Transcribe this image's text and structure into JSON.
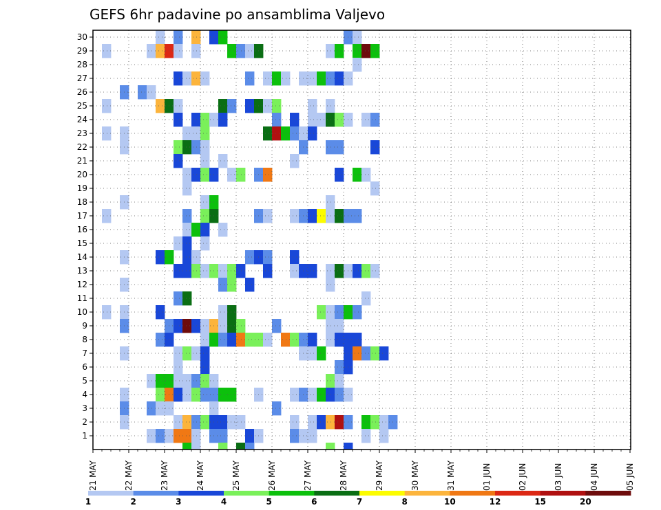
{
  "chart_data": {
    "type": "heatmap",
    "title": "GEFS 6hr padavine po ansamblima Valjevo",
    "ylim": [
      0,
      30
    ],
    "y_ticks": [
      1,
      2,
      3,
      4,
      5,
      6,
      7,
      8,
      9,
      10,
      11,
      12,
      13,
      14,
      15,
      16,
      17,
      18,
      19,
      20,
      21,
      22,
      23,
      24,
      25,
      26,
      27,
      28,
      29,
      30
    ],
    "x_ticks": [
      "21 MAY",
      "22 MAY",
      "23 MAY",
      "24 MAY",
      "25 MAY",
      "26 MAY",
      "27 MAY",
      "28 MAY",
      "29 MAY",
      "30 MAY",
      "31 MAY",
      "01 JUN",
      "02 JUN",
      "03 JUN",
      "04 JUN",
      "05 JUN"
    ],
    "time_step_hours": 6,
    "grid": true,
    "colorbar": {
      "labels": [
        "1",
        "2",
        "3",
        "4",
        "5",
        "6",
        "7",
        "8",
        "10",
        "12",
        "15",
        "20"
      ],
      "colors": [
        "#b4c8f2",
        "#5b8ce8",
        "#1947d8",
        "#7af05a",
        "#0cc00c",
        "#0a6e14",
        "#fcfc00",
        "#fcb43c",
        "#f07814",
        "#dc2814",
        "#b01010",
        "#6e0c0c"
      ]
    },
    "cells": [
      [
        7,
        30,
        1
      ],
      [
        9,
        30,
        2
      ],
      [
        11,
        30,
        8
      ],
      [
        13,
        30,
        3
      ],
      [
        14,
        30,
        5
      ],
      [
        28,
        30,
        2
      ],
      [
        29,
        30,
        1
      ],
      [
        1,
        29,
        1
      ],
      [
        6,
        29,
        1
      ],
      [
        7,
        29,
        8
      ],
      [
        8,
        29,
        10
      ],
      [
        9,
        29,
        1
      ],
      [
        11,
        29,
        1
      ],
      [
        15,
        29,
        5
      ],
      [
        16,
        29,
        2
      ],
      [
        17,
        29,
        1
      ],
      [
        18,
        29,
        6
      ],
      [
        26,
        29,
        1
      ],
      [
        27,
        29,
        5
      ],
      [
        29,
        29,
        5
      ],
      [
        30,
        29,
        12
      ],
      [
        31,
        29,
        5
      ],
      [
        29,
        28,
        1
      ],
      [
        9,
        27,
        3
      ],
      [
        10,
        27,
        1
      ],
      [
        11,
        27,
        8
      ],
      [
        12,
        27,
        1
      ],
      [
        17,
        27,
        2
      ],
      [
        19,
        27,
        1
      ],
      [
        20,
        27,
        5
      ],
      [
        21,
        27,
        1
      ],
      [
        23,
        27,
        1
      ],
      [
        24,
        27,
        1
      ],
      [
        25,
        27,
        5
      ],
      [
        26,
        27,
        2
      ],
      [
        27,
        27,
        3
      ],
      [
        28,
        27,
        1
      ],
      [
        3,
        26,
        2
      ],
      [
        5,
        26,
        2
      ],
      [
        6,
        26,
        1
      ],
      [
        1,
        25,
        1
      ],
      [
        7,
        25,
        8
      ],
      [
        8,
        25,
        6
      ],
      [
        9,
        25,
        1
      ],
      [
        14,
        25,
        6
      ],
      [
        15,
        25,
        2
      ],
      [
        17,
        25,
        3
      ],
      [
        18,
        25,
        6
      ],
      [
        19,
        25,
        1
      ],
      [
        20,
        25,
        4
      ],
      [
        24,
        25,
        1
      ],
      [
        26,
        25,
        1
      ],
      [
        9,
        24,
        3
      ],
      [
        11,
        24,
        3
      ],
      [
        12,
        24,
        4
      ],
      [
        13,
        24,
        1
      ],
      [
        14,
        24,
        3
      ],
      [
        20,
        24,
        2
      ],
      [
        22,
        24,
        3
      ],
      [
        24,
        24,
        1
      ],
      [
        25,
        24,
        1
      ],
      [
        26,
        24,
        6
      ],
      [
        27,
        24,
        4
      ],
      [
        28,
        24,
        1
      ],
      [
        30,
        24,
        1
      ],
      [
        31,
        24,
        2
      ],
      [
        1,
        23,
        1
      ],
      [
        3,
        23,
        1
      ],
      [
        10,
        23,
        1
      ],
      [
        11,
        23,
        1
      ],
      [
        12,
        23,
        4
      ],
      [
        19,
        23,
        6
      ],
      [
        20,
        23,
        11
      ],
      [
        21,
        23,
        5
      ],
      [
        22,
        23,
        2
      ],
      [
        23,
        23,
        1
      ],
      [
        24,
        23,
        3
      ],
      [
        3,
        22,
        1
      ],
      [
        9,
        22,
        4
      ],
      [
        10,
        22,
        6
      ],
      [
        11,
        22,
        2
      ],
      [
        12,
        22,
        1
      ],
      [
        23,
        22,
        2
      ],
      [
        26,
        22,
        2
      ],
      [
        27,
        22,
        2
      ],
      [
        31,
        22,
        3
      ],
      [
        9,
        21,
        3
      ],
      [
        12,
        21,
        1
      ],
      [
        14,
        21,
        1
      ],
      [
        22,
        21,
        1
      ],
      [
        10,
        20,
        1
      ],
      [
        11,
        20,
        3
      ],
      [
        12,
        20,
        4
      ],
      [
        13,
        20,
        3
      ],
      [
        15,
        20,
        1
      ],
      [
        16,
        20,
        4
      ],
      [
        18,
        20,
        2
      ],
      [
        19,
        20,
        9
      ],
      [
        27,
        20,
        3
      ],
      [
        29,
        20,
        5
      ],
      [
        30,
        20,
        1
      ],
      [
        10,
        19,
        1
      ],
      [
        31,
        19,
        1
      ],
      [
        3,
        18,
        1
      ],
      [
        12,
        18,
        1
      ],
      [
        13,
        18,
        5
      ],
      [
        26,
        18,
        1
      ],
      [
        1,
        17,
        1
      ],
      [
        10,
        17,
        2
      ],
      [
        12,
        17,
        4
      ],
      [
        13,
        17,
        6
      ],
      [
        18,
        17,
        2
      ],
      [
        19,
        17,
        1
      ],
      [
        22,
        17,
        1
      ],
      [
        23,
        17,
        2
      ],
      [
        24,
        17,
        3
      ],
      [
        25,
        17,
        7
      ],
      [
        26,
        17,
        1
      ],
      [
        27,
        17,
        6
      ],
      [
        28,
        17,
        2
      ],
      [
        29,
        17,
        2
      ],
      [
        10,
        16,
        1
      ],
      [
        11,
        16,
        5
      ],
      [
        12,
        16,
        3
      ],
      [
        14,
        16,
        1
      ],
      [
        9,
        15,
        1
      ],
      [
        10,
        15,
        3
      ],
      [
        12,
        15,
        1
      ],
      [
        3,
        14,
        1
      ],
      [
        7,
        14,
        3
      ],
      [
        8,
        14,
        5
      ],
      [
        10,
        14,
        3
      ],
      [
        11,
        14,
        1
      ],
      [
        17,
        14,
        2
      ],
      [
        18,
        14,
        3
      ],
      [
        19,
        14,
        2
      ],
      [
        22,
        14,
        3
      ],
      [
        9,
        13,
        3
      ],
      [
        10,
        13,
        3
      ],
      [
        11,
        13,
        4
      ],
      [
        12,
        13,
        1
      ],
      [
        13,
        13,
        4
      ],
      [
        14,
        13,
        1
      ],
      [
        15,
        13,
        4
      ],
      [
        16,
        13,
        3
      ],
      [
        19,
        13,
        3
      ],
      [
        22,
        13,
        1
      ],
      [
        23,
        13,
        3
      ],
      [
        24,
        13,
        3
      ],
      [
        26,
        13,
        1
      ],
      [
        27,
        13,
        6
      ],
      [
        28,
        13,
        1
      ],
      [
        29,
        13,
        3
      ],
      [
        30,
        13,
        4
      ],
      [
        31,
        13,
        1
      ],
      [
        3,
        12,
        1
      ],
      [
        14,
        12,
        2
      ],
      [
        15,
        12,
        4
      ],
      [
        17,
        12,
        3
      ],
      [
        26,
        12,
        1
      ],
      [
        9,
        11,
        2
      ],
      [
        10,
        11,
        6
      ],
      [
        30,
        11,
        1
      ],
      [
        1,
        10,
        1
      ],
      [
        3,
        10,
        1
      ],
      [
        7,
        10,
        3
      ],
      [
        14,
        10,
        1
      ],
      [
        15,
        10,
        6
      ],
      [
        25,
        10,
        4
      ],
      [
        26,
        10,
        1
      ],
      [
        27,
        10,
        2
      ],
      [
        28,
        10,
        5
      ],
      [
        29,
        10,
        2
      ],
      [
        3,
        9,
        2
      ],
      [
        8,
        9,
        2
      ],
      [
        9,
        9,
        3
      ],
      [
        10,
        9,
        12
      ],
      [
        11,
        9,
        3
      ],
      [
        12,
        9,
        1
      ],
      [
        13,
        9,
        8
      ],
      [
        14,
        9,
        1
      ],
      [
        15,
        9,
        6
      ],
      [
        16,
        9,
        4
      ],
      [
        20,
        9,
        2
      ],
      [
        26,
        9,
        1
      ],
      [
        27,
        9,
        1
      ],
      [
        7,
        8,
        2
      ],
      [
        8,
        8,
        3
      ],
      [
        12,
        8,
        1
      ],
      [
        13,
        8,
        5
      ],
      [
        14,
        8,
        2
      ],
      [
        15,
        8,
        3
      ],
      [
        16,
        8,
        9
      ],
      [
        17,
        8,
        4
      ],
      [
        18,
        8,
        4
      ],
      [
        19,
        8,
        1
      ],
      [
        21,
        8,
        9
      ],
      [
        22,
        8,
        4
      ],
      [
        23,
        8,
        2
      ],
      [
        24,
        8,
        3
      ],
      [
        26,
        8,
        1
      ],
      [
        27,
        8,
        3
      ],
      [
        28,
        8,
        3
      ],
      [
        29,
        8,
        3
      ],
      [
        3,
        7,
        1
      ],
      [
        9,
        7,
        1
      ],
      [
        10,
        7,
        4
      ],
      [
        11,
        7,
        1
      ],
      [
        12,
        7,
        3
      ],
      [
        23,
        7,
        1
      ],
      [
        24,
        7,
        1
      ],
      [
        25,
        7,
        5
      ],
      [
        28,
        7,
        3
      ],
      [
        29,
        7,
        9
      ],
      [
        30,
        7,
        2
      ],
      [
        31,
        7,
        4
      ],
      [
        32,
        7,
        3
      ],
      [
        9,
        6,
        1
      ],
      [
        12,
        6,
        3
      ],
      [
        27,
        6,
        2
      ],
      [
        28,
        6,
        3
      ],
      [
        6,
        5,
        1
      ],
      [
        7,
        5,
        5
      ],
      [
        8,
        5,
        5
      ],
      [
        9,
        5,
        1
      ],
      [
        10,
        5,
        1
      ],
      [
        11,
        5,
        2
      ],
      [
        12,
        5,
        4
      ],
      [
        13,
        5,
        1
      ],
      [
        26,
        5,
        4
      ],
      [
        27,
        5,
        1
      ],
      [
        3,
        4,
        1
      ],
      [
        7,
        4,
        4
      ],
      [
        8,
        4,
        9
      ],
      [
        9,
        4,
        3
      ],
      [
        10,
        4,
        1
      ],
      [
        11,
        4,
        4
      ],
      [
        12,
        4,
        2
      ],
      [
        13,
        4,
        2
      ],
      [
        14,
        4,
        5
      ],
      [
        15,
        4,
        5
      ],
      [
        18,
        4,
        1
      ],
      [
        22,
        4,
        1
      ],
      [
        23,
        4,
        2
      ],
      [
        24,
        4,
        1
      ],
      [
        25,
        4,
        5
      ],
      [
        26,
        4,
        3
      ],
      [
        27,
        4,
        2
      ],
      [
        28,
        4,
        1
      ],
      [
        3,
        3,
        2
      ],
      [
        6,
        3,
        2
      ],
      [
        7,
        3,
        1
      ],
      [
        8,
        3,
        1
      ],
      [
        13,
        3,
        1
      ],
      [
        20,
        3,
        2
      ],
      [
        3,
        2,
        1
      ],
      [
        9,
        2,
        1
      ],
      [
        10,
        2,
        8
      ],
      [
        11,
        2,
        2
      ],
      [
        12,
        2,
        4
      ],
      [
        13,
        2,
        3
      ],
      [
        14,
        2,
        3
      ],
      [
        15,
        2,
        1
      ],
      [
        16,
        2,
        1
      ],
      [
        22,
        2,
        1
      ],
      [
        24,
        2,
        1
      ],
      [
        25,
        2,
        3
      ],
      [
        26,
        2,
        8
      ],
      [
        27,
        2,
        11
      ],
      [
        28,
        2,
        2
      ],
      [
        30,
        2,
        5
      ],
      [
        31,
        2,
        4
      ],
      [
        32,
        2,
        1
      ],
      [
        33,
        2,
        2
      ],
      [
        6,
        1,
        1
      ],
      [
        7,
        1,
        2
      ],
      [
        8,
        1,
        1
      ],
      [
        9,
        1,
        9
      ],
      [
        10,
        1,
        9
      ],
      [
        11,
        1,
        1
      ],
      [
        13,
        1,
        2
      ],
      [
        14,
        1,
        2
      ],
      [
        17,
        1,
        3
      ],
      [
        18,
        1,
        1
      ],
      [
        22,
        1,
        2
      ],
      [
        23,
        1,
        1
      ],
      [
        24,
        1,
        1
      ],
      [
        30,
        1,
        1
      ],
      [
        32,
        1,
        1
      ],
      [
        10,
        0,
        5
      ],
      [
        11,
        0,
        1
      ],
      [
        14,
        0,
        4
      ],
      [
        16,
        0,
        6
      ],
      [
        17,
        0,
        2
      ],
      [
        26,
        0,
        4
      ],
      [
        28,
        0,
        3
      ]
    ]
  }
}
